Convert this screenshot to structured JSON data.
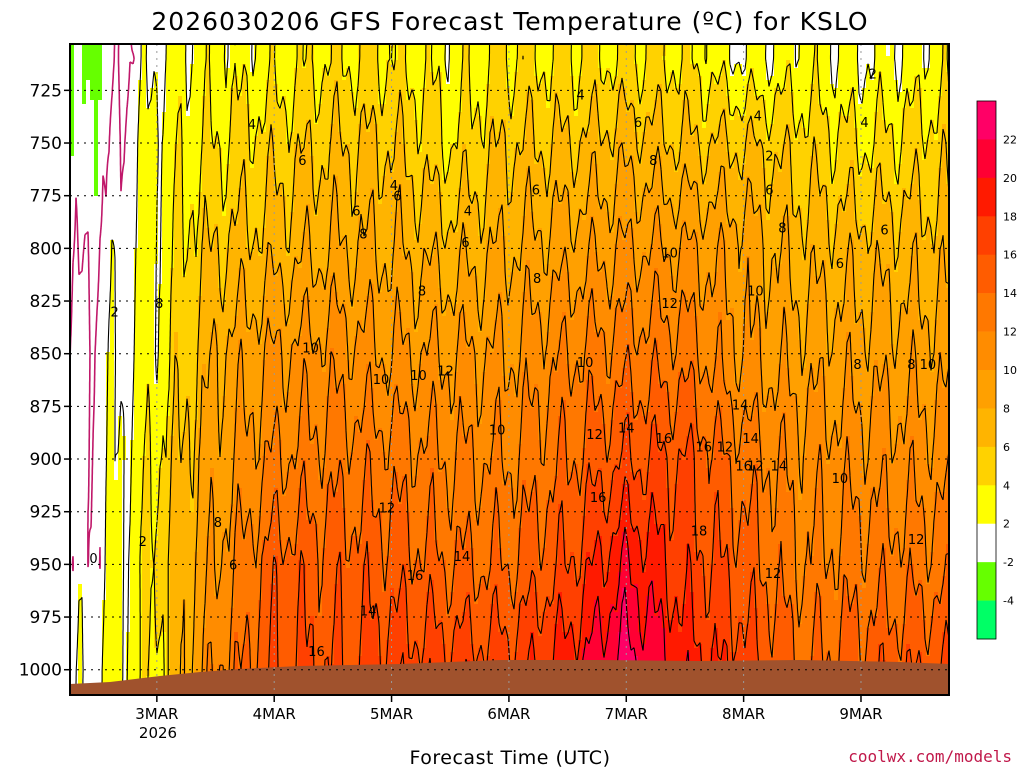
{
  "chart_data": {
    "type": "heatmap",
    "title": "2026030206 GFS Forecast Temperature (ºC) for KSLO",
    "xlabel": "Forecast Time (UTC)",
    "ylabel": "",
    "credit": "coolwx.com/models",
    "pressure_ticks": [
      "725",
      "750",
      "775",
      "800",
      "825",
      "850",
      "875",
      "900",
      "925",
      "950",
      "975",
      "1000"
    ],
    "pressure_values": [
      725,
      750,
      775,
      800,
      825,
      850,
      875,
      900,
      925,
      950,
      975,
      1000
    ],
    "ylim": [
      703,
      1012
    ],
    "x_ticks": [
      "3MAR",
      "4MAR",
      "5MAR",
      "6MAR",
      "7MAR",
      "8MAR",
      "9MAR"
    ],
    "x_tick_days": [
      1,
      2,
      3,
      4,
      5,
      6,
      7
    ],
    "x_year_label": "2026",
    "xlim_days": [
      0.26,
      7.75
    ],
    "grid": true,
    "colorbar": {
      "labels": [
        "22",
        "20",
        "18",
        "16",
        "14",
        "12",
        "10",
        "8",
        "6",
        "4",
        "2",
        "-2",
        "-4"
      ],
      "bands": [
        {
          "lo": 22,
          "hi": 24,
          "color": "#ff0066"
        },
        {
          "lo": 20,
          "hi": 22,
          "color": "#ff0033"
        },
        {
          "lo": 18,
          "hi": 20,
          "color": "#ff1a00"
        },
        {
          "lo": 16,
          "hi": 18,
          "color": "#ff4000"
        },
        {
          "lo": 14,
          "hi": 16,
          "color": "#ff5c00"
        },
        {
          "lo": 12,
          "hi": 14,
          "color": "#ff7800"
        },
        {
          "lo": 10,
          "hi": 12,
          "color": "#ff8c00"
        },
        {
          "lo": 8,
          "hi": 10,
          "color": "#ffa000"
        },
        {
          "lo": 6,
          "hi": 8,
          "color": "#ffb400"
        },
        {
          "lo": 4,
          "hi": 6,
          "color": "#ffd200"
        },
        {
          "lo": 2,
          "hi": 4,
          "color": "#ffff00"
        },
        {
          "lo": -2,
          "hi": 2,
          "color": "#ffffff"
        },
        {
          "lo": -4,
          "hi": -2,
          "color": "#66ff00"
        },
        {
          "lo": -6,
          "hi": -4,
          "color": "#00ff66"
        }
      ]
    },
    "surface_color": "#a0522d",
    "contour_color": "#000000",
    "freezing_contour_color": "#c0186a",
    "time_days": [
      0.26,
      0.5,
      1.0,
      1.5,
      2.0,
      2.5,
      3.0,
      3.5,
      4.0,
      4.5,
      5.0,
      5.5,
      6.0,
      6.5,
      7.0,
      7.75
    ],
    "temperature_profiles": [
      {
        "day": 0.26,
        "p": [
          710,
          750,
          800,
          850,
          900,
          950,
          1000
        ],
        "t": [
          -3,
          -2,
          -1,
          0,
          0,
          0,
          1
        ]
      },
      {
        "day": 0.5,
        "p": [
          710,
          750,
          800,
          850,
          900,
          950,
          1000
        ],
        "t": [
          -2,
          -1,
          0,
          1,
          1,
          1,
          2
        ]
      },
      {
        "day": 1.0,
        "p": [
          710,
          750,
          800,
          850,
          900,
          950,
          1000
        ],
        "t": [
          2,
          3,
          3,
          3,
          4,
          5,
          4
        ]
      },
      {
        "day": 1.5,
        "p": [
          710,
          750,
          800,
          850,
          900,
          950,
          1000
        ],
        "t": [
          3,
          4,
          6,
          8,
          9,
          10,
          12
        ]
      },
      {
        "day": 2.0,
        "p": [
          710,
          750,
          800,
          850,
          900,
          950,
          1000
        ],
        "t": [
          3,
          5,
          7,
          10,
          12,
          15,
          16
        ]
      },
      {
        "day": 2.5,
        "p": [
          710,
          750,
          800,
          850,
          900,
          950,
          1000
        ],
        "t": [
          4,
          6,
          8,
          11,
          13,
          15,
          16
        ]
      },
      {
        "day": 3.0,
        "p": [
          710,
          750,
          800,
          850,
          900,
          950,
          1000
        ],
        "t": [
          4,
          6,
          8,
          10,
          13,
          15,
          17
        ]
      },
      {
        "day": 3.5,
        "p": [
          710,
          750,
          800,
          850,
          900,
          950,
          1000
        ],
        "t": [
          3,
          4,
          7,
          10,
          12,
          14,
          17
        ]
      },
      {
        "day": 4.0,
        "p": [
          710,
          750,
          800,
          850,
          900,
          950,
          1000
        ],
        "t": [
          4,
          6,
          8,
          10,
          12,
          14,
          17
        ]
      },
      {
        "day": 4.5,
        "p": [
          710,
          750,
          800,
          850,
          900,
          950,
          1000
        ],
        "t": [
          4,
          6,
          9,
          12,
          14,
          16,
          19
        ]
      },
      {
        "day": 5.0,
        "p": [
          710,
          750,
          800,
          850,
          900,
          950,
          1000
        ],
        "t": [
          4,
          7,
          10,
          13,
          16,
          20,
          23
        ]
      },
      {
        "day": 5.5,
        "p": [
          710,
          750,
          800,
          850,
          900,
          950,
          1000
        ],
        "t": [
          4,
          6,
          10,
          13,
          16,
          17,
          19
        ]
      },
      {
        "day": 6.0,
        "p": [
          710,
          750,
          800,
          850,
          900,
          950,
          1000
        ],
        "t": [
          2,
          6,
          9,
          10,
          13,
          15,
          17
        ]
      },
      {
        "day": 6.5,
        "p": [
          710,
          750,
          800,
          850,
          900,
          950,
          1000
        ],
        "t": [
          3,
          5,
          7,
          9,
          11,
          12,
          14
        ]
      },
      {
        "day": 7.0,
        "p": [
          710,
          750,
          800,
          850,
          900,
          950,
          1000
        ],
        "t": [
          2,
          4,
          7,
          9,
          11,
          13,
          15
        ]
      },
      {
        "day": 7.75,
        "p": [
          710,
          750,
          800,
          850,
          900,
          950,
          1000
        ],
        "t": [
          3,
          5,
          7,
          9,
          11,
          13,
          16
        ]
      }
    ],
    "contour_labels": [
      {
        "text": "0",
        "day": 0.46,
        "p": 947
      },
      {
        "text": "2",
        "day": 0.64,
        "p": 830
      },
      {
        "text": "2",
        "day": 0.88,
        "p": 939
      },
      {
        "text": "2",
        "day": 6.22,
        "p": 756
      },
      {
        "text": "2",
        "day": 7.1,
        "p": 717
      },
      {
        "text": "4",
        "day": 1.81,
        "p": 741
      },
      {
        "text": "4",
        "day": 3.02,
        "p": 770
      },
      {
        "text": "4",
        "day": 3.65,
        "p": 782
      },
      {
        "text": "4",
        "day": 4.61,
        "p": 727
      },
      {
        "text": "4",
        "day": 6.12,
        "p": 737
      },
      {
        "text": "4",
        "day": 7.03,
        "p": 740
      },
      {
        "text": "6",
        "day": 2.24,
        "p": 758
      },
      {
        "text": "6",
        "day": 2.7,
        "p": 782
      },
      {
        "text": "6",
        "day": 3.05,
        "p": 775
      },
      {
        "text": "6",
        "day": 3.63,
        "p": 797
      },
      {
        "text": "6",
        "day": 4.23,
        "p": 772
      },
      {
        "text": "6",
        "day": 5.1,
        "p": 740
      },
      {
        "text": "6",
        "day": 6.22,
        "p": 772
      },
      {
        "text": "6",
        "day": 6.82,
        "p": 807
      },
      {
        "text": "6",
        "day": 7.2,
        "p": 791
      },
      {
        "text": "6",
        "day": 1.65,
        "p": 950
      },
      {
        "text": "8",
        "day": 1.02,
        "p": 826
      },
      {
        "text": "8",
        "day": 2.76,
        "p": 793
      },
      {
        "text": "8",
        "day": 3.26,
        "p": 820
      },
      {
        "text": "8",
        "day": 4.24,
        "p": 814
      },
      {
        "text": "8",
        "day": 5.23,
        "p": 758
      },
      {
        "text": "8",
        "day": 6.33,
        "p": 790
      },
      {
        "text": "8",
        "day": 6.97,
        "p": 855
      },
      {
        "text": "8",
        "day": 7.43,
        "p": 855
      },
      {
        "text": "8",
        "day": 1.52,
        "p": 930
      },
      {
        "text": "10",
        "day": 2.31,
        "p": 847
      },
      {
        "text": "10",
        "day": 2.91,
        "p": 862
      },
      {
        "text": "10",
        "day": 3.23,
        "p": 860
      },
      {
        "text": "10",
        "day": 3.9,
        "p": 886
      },
      {
        "text": "10",
        "day": 4.65,
        "p": 854
      },
      {
        "text": "10",
        "day": 5.37,
        "p": 802
      },
      {
        "text": "10",
        "day": 6.1,
        "p": 820
      },
      {
        "text": "10",
        "day": 6.82,
        "p": 909
      },
      {
        "text": "10",
        "day": 7.57,
        "p": 855
      },
      {
        "text": "12",
        "day": 3.46,
        "p": 858
      },
      {
        "text": "12",
        "day": 2.96,
        "p": 923
      },
      {
        "text": "12",
        "day": 4.73,
        "p": 888
      },
      {
        "text": "12",
        "day": 5.37,
        "p": 826
      },
      {
        "text": "12",
        "day": 6.25,
        "p": 954
      },
      {
        "text": "12",
        "day": 7.47,
        "p": 938
      },
      {
        "text": "14",
        "day": 5.0,
        "p": 885
      },
      {
        "text": "14",
        "day": 5.97,
        "p": 874
      },
      {
        "text": "14",
        "day": 6.06,
        "p": 890
      },
      {
        "text": "14",
        "day": 6.3,
        "p": 903
      },
      {
        "text": "14",
        "day": 3.6,
        "p": 946
      },
      {
        "text": "14",
        "day": 2.8,
        "p": 972
      },
      {
        "text": "16",
        "day": 5.32,
        "p": 890
      },
      {
        "text": "16",
        "day": 5.66,
        "p": 894
      },
      {
        "text": "16",
        "day": 6.0,
        "p": 903
      },
      {
        "text": "16",
        "day": 4.76,
        "p": 918
      },
      {
        "text": "16",
        "day": 3.2,
        "p": 955
      },
      {
        "text": "16",
        "day": 2.36,
        "p": 991
      },
      {
        "text": "12",
        "day": 5.84,
        "p": 894
      },
      {
        "text": "12",
        "day": 6.1,
        "p": 903
      },
      {
        "text": "18",
        "day": 5.62,
        "p": 934
      }
    ]
  }
}
